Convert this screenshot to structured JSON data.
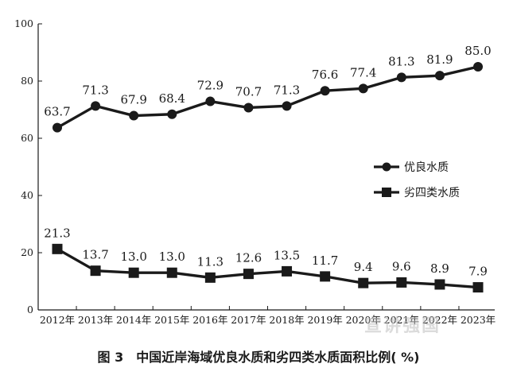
{
  "figure": {
    "caption": "图 3　中国近岸海域优良水质和劣四类水质面积比例( %)",
    "watermark": "宣讲强国"
  },
  "chart_data": {
    "type": "line",
    "title": "",
    "xlabel": "",
    "ylabel": "",
    "ylim": [
      0,
      100
    ],
    "yticks": [
      0,
      20,
      40,
      60,
      80,
      100
    ],
    "categories": [
      "2012年",
      "2013年",
      "2014年",
      "2015年",
      "2016年",
      "2017年",
      "2018年",
      "2019年",
      "2020年",
      "2021年",
      "2022年",
      "2023年"
    ],
    "legend_position": "right-middle",
    "grid": false,
    "series": [
      {
        "name": "优良水质",
        "marker": "circle",
        "color": "#1a1a1a",
        "values": [
          63.7,
          71.3,
          67.9,
          68.4,
          72.9,
          70.7,
          71.3,
          76.6,
          77.4,
          81.3,
          81.9,
          85.0
        ],
        "labels": [
          "63.7",
          "71.3",
          "67.9",
          "68.4",
          "72.9",
          "70.7",
          "71.3",
          "76.6",
          "77.4",
          "81.3",
          "81.9",
          "85.0"
        ]
      },
      {
        "name": "劣四类水质",
        "marker": "square",
        "color": "#1a1a1a",
        "values": [
          21.3,
          13.7,
          13.0,
          13.0,
          11.3,
          12.6,
          13.5,
          11.7,
          9.4,
          9.6,
          8.9,
          7.9
        ],
        "labels": [
          "21.3",
          "13.7",
          "13.0",
          "13.0",
          "11.3",
          "12.6",
          "13.5",
          "11.7",
          "9.4",
          "9.6",
          "8.9",
          "7.9"
        ]
      }
    ]
  }
}
